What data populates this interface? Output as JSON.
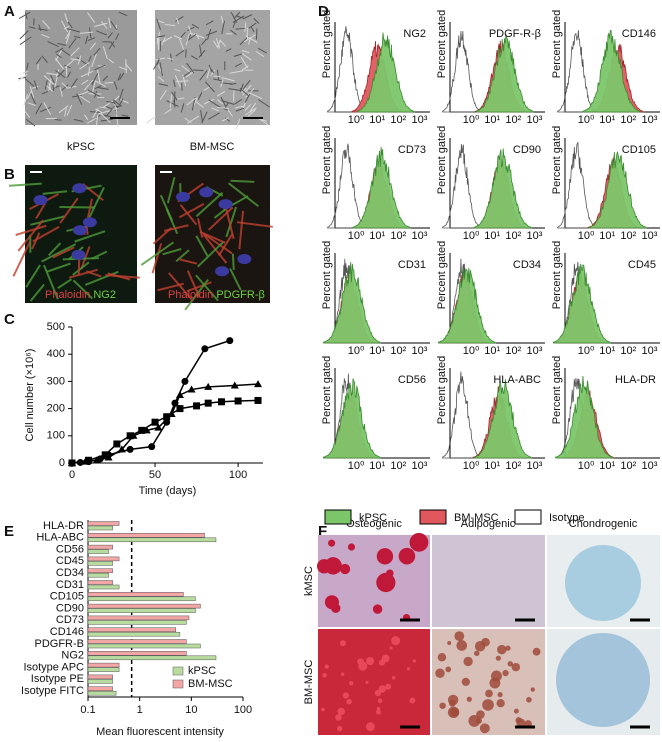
{
  "panel_labels": [
    "A",
    "B",
    "C",
    "D",
    "E",
    "F"
  ],
  "panel_a": {
    "captions": [
      "kPSC",
      "BM-MSC"
    ]
  },
  "panel_b": {
    "captions": [
      [
        "Phaloidin",
        "NG2"
      ],
      [
        "Phaloidin",
        "PDGFR-β"
      ]
    ]
  },
  "panel_d": {
    "markers": [
      "NG2",
      "PDGF-R-β",
      "CD146",
      "CD73",
      "CD90",
      "CD105",
      "CD31",
      "CD34",
      "CD45",
      "CD56",
      "HLA-ABC",
      "HLA-DR"
    ],
    "y_label": "Percent gated",
    "x_tick_labels": [
      "10⁰",
      "10¹",
      "10²",
      "10³"
    ],
    "legend": [
      {
        "name": "kPSC",
        "color": "#7cc66a"
      },
      {
        "name": "BM-MSC",
        "color": "#e0585e"
      },
      {
        "name": "Isotype",
        "color": "#ffffff"
      }
    ]
  },
  "panel_f": {
    "columns": [
      "Osteogenic",
      "Adipogenic",
      "Chondrogenic"
    ],
    "rows": [
      "kMSC",
      "BM-MSC"
    ]
  },
  "chart_data": [
    {
      "type": "line",
      "x_label": "Time (days)",
      "y_label": "Cell number (×10⁶)",
      "xlim": [
        0,
        115
      ],
      "ylim": [
        0,
        500
      ],
      "xticks": [
        0,
        50,
        100
      ],
      "yticks": [
        0,
        100,
        200,
        300,
        400,
        500
      ],
      "series": [
        {
          "marker": "circle",
          "color": "#000000",
          "x": [
            0,
            5,
            10,
            17,
            22,
            35,
            48,
            57,
            62,
            68,
            80,
            95
          ],
          "values": [
            0,
            2,
            5,
            15,
            30,
            50,
            60,
            150,
            220,
            300,
            420,
            450
          ]
        },
        {
          "marker": "triangle",
          "color": "#000000",
          "x": [
            0,
            8,
            15,
            22,
            30,
            37,
            45,
            52,
            60,
            65,
            72,
            82,
            98,
            112
          ],
          "values": [
            0,
            5,
            10,
            20,
            50,
            100,
            120,
            130,
            180,
            250,
            270,
            280,
            285,
            290
          ]
        },
        {
          "marker": "square",
          "color": "#000000",
          "x": [
            0,
            10,
            20,
            27,
            35,
            42,
            50,
            57,
            65,
            75,
            82,
            90,
            100,
            112
          ],
          "values": [
            0,
            10,
            30,
            70,
            100,
            120,
            150,
            170,
            200,
            210,
            220,
            225,
            228,
            230
          ]
        }
      ]
    },
    {
      "type": "hbar",
      "x_label": "Mean fluorescent intensity",
      "log_x": true,
      "xlim": [
        0.1,
        100
      ],
      "xticks": [
        0.1,
        1,
        10,
        100
      ],
      "ref_line": 0.7,
      "legend": "lower right",
      "categories": [
        "HLA-DR",
        "HLA-ABC",
        "CD56",
        "CD45",
        "CD34",
        "CD31",
        "CD105",
        "CD90",
        "CD73",
        "CD146",
        "PDGFR-B",
        "NG2",
        "Isotype APC",
        "Isotype PE",
        "Isotype FITC"
      ],
      "series": [
        {
          "name": "kPSC",
          "color": "#b8dca0",
          "values": [
            0.3,
            30,
            0.25,
            0.3,
            0.25,
            0.4,
            12,
            12,
            8,
            6,
            15,
            30,
            0.4,
            0.3,
            0.35
          ]
        },
        {
          "name": "BM-MSC",
          "color": "#f2a6a6",
          "values": [
            0.4,
            18,
            0.3,
            0.4,
            0.3,
            0.3,
            7,
            15,
            9,
            5,
            8,
            8,
            0.4,
            0.3,
            0.3
          ]
        }
      ]
    }
  ]
}
